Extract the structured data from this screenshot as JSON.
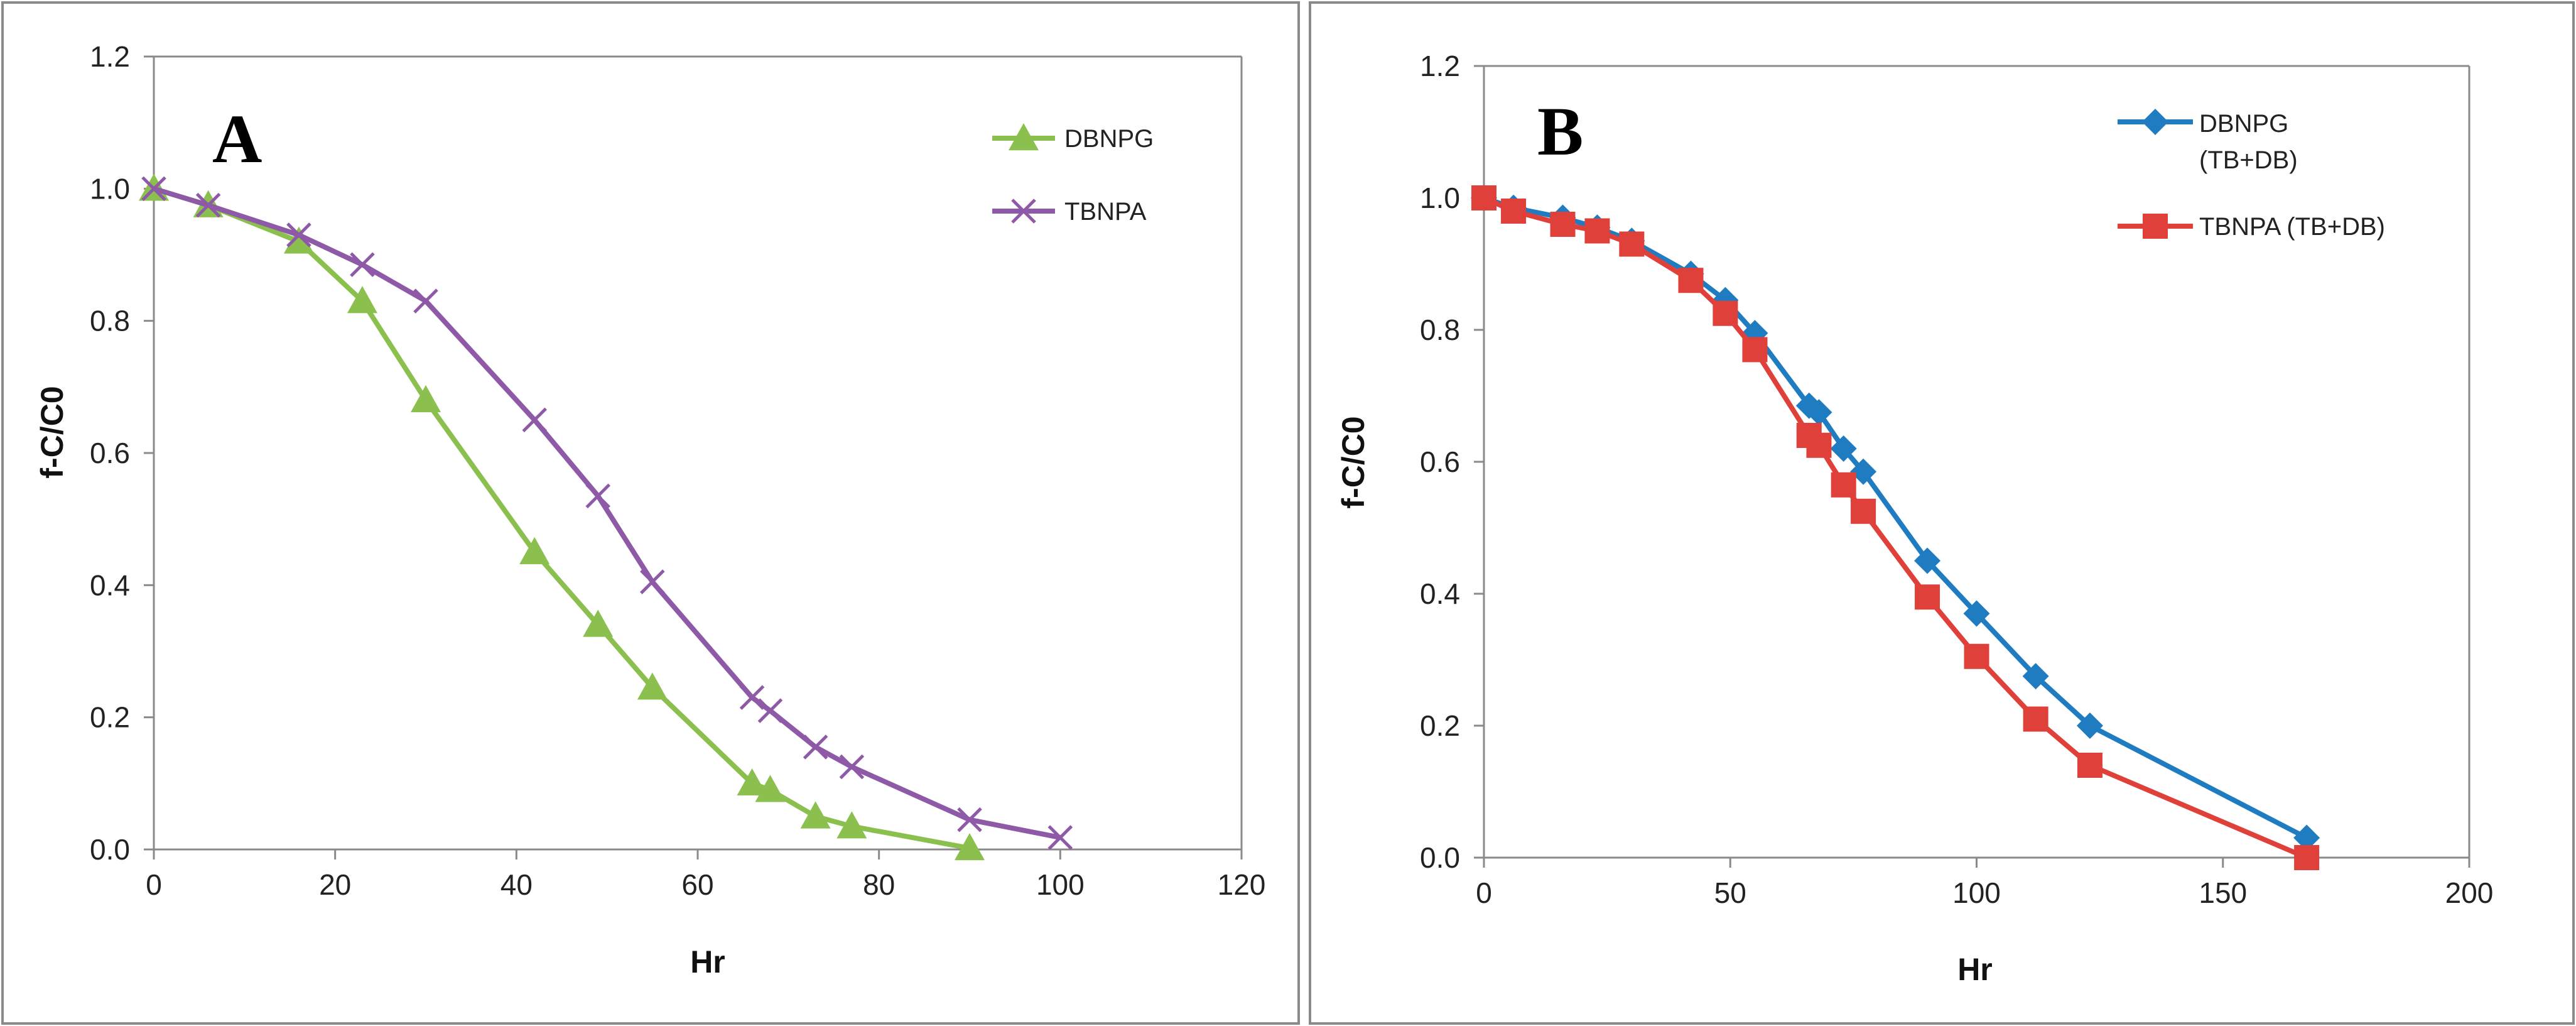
{
  "chart_data": [
    {
      "type": "line",
      "panel_label": "A",
      "xlabel": "Hr",
      "ylabel": "f-C/C0",
      "xlim": [
        0,
        120
      ],
      "ylim": [
        0,
        1.2
      ],
      "xticks": [
        "0",
        "20",
        "40",
        "60",
        "80",
        "100",
        "120"
      ],
      "yticks": [
        "0.0",
        "0.2",
        "0.4",
        "0.6",
        "0.8",
        "1.0",
        "1.2"
      ],
      "legend_position": "top-right",
      "series": [
        {
          "name": "DBNPG",
          "color": "#8CC04E",
          "marker": "triangle",
          "x": [
            0,
            6,
            16,
            23,
            30,
            42,
            49,
            55,
            66,
            68,
            73,
            77,
            90
          ],
          "y": [
            1.0,
            0.975,
            0.92,
            0.83,
            0.68,
            0.45,
            0.34,
            0.245,
            0.1,
            0.09,
            0.05,
            0.035,
            0.002
          ]
        },
        {
          "name": "TBNPA",
          "color": "#8E5AA8",
          "marker": "x",
          "x": [
            0,
            6,
            16,
            23,
            30,
            42,
            49,
            55,
            66,
            68,
            73,
            77,
            90,
            100
          ],
          "y": [
            1.0,
            0.975,
            0.93,
            0.885,
            0.83,
            0.65,
            0.535,
            0.405,
            0.23,
            0.21,
            0.155,
            0.125,
            0.045,
            0.018
          ]
        }
      ]
    },
    {
      "type": "line",
      "panel_label": "B",
      "xlabel": "Hr",
      "ylabel": "f-C/C0",
      "xlim": [
        0,
        200
      ],
      "ylim": [
        0,
        1.2
      ],
      "xticks": [
        "0",
        "50",
        "100",
        "150",
        "200"
      ],
      "yticks": [
        "0.0",
        "0.2",
        "0.4",
        "0.6",
        "0.8",
        "1.0",
        "1.2"
      ],
      "legend_position": "top-right",
      "series": [
        {
          "name": "DBNPG (TB+DB)",
          "legend_lines": [
            "DBNPG",
            "(TB+DB)"
          ],
          "color": "#1F7CC1",
          "marker": "diamond",
          "x": [
            0,
            6,
            16,
            23,
            30,
            42,
            49,
            55,
            66,
            68,
            73,
            77,
            90,
            100,
            112,
            123,
            167
          ],
          "y": [
            1.0,
            0.985,
            0.97,
            0.955,
            0.935,
            0.885,
            0.845,
            0.795,
            0.685,
            0.675,
            0.62,
            0.585,
            0.45,
            0.37,
            0.275,
            0.2,
            0.03
          ]
        },
        {
          "name": "TBNPA (TB+DB)",
          "legend_lines": [
            "TBNPA (TB+DB)"
          ],
          "color": "#E0403A",
          "marker": "square",
          "x": [
            0,
            6,
            16,
            23,
            30,
            42,
            49,
            55,
            66,
            68,
            73,
            77,
            90,
            100,
            112,
            123,
            167
          ],
          "y": [
            1.0,
            0.98,
            0.96,
            0.95,
            0.93,
            0.875,
            0.825,
            0.77,
            0.64,
            0.625,
            0.565,
            0.525,
            0.395,
            0.305,
            0.21,
            0.14,
            0.0
          ]
        }
      ]
    }
  ]
}
